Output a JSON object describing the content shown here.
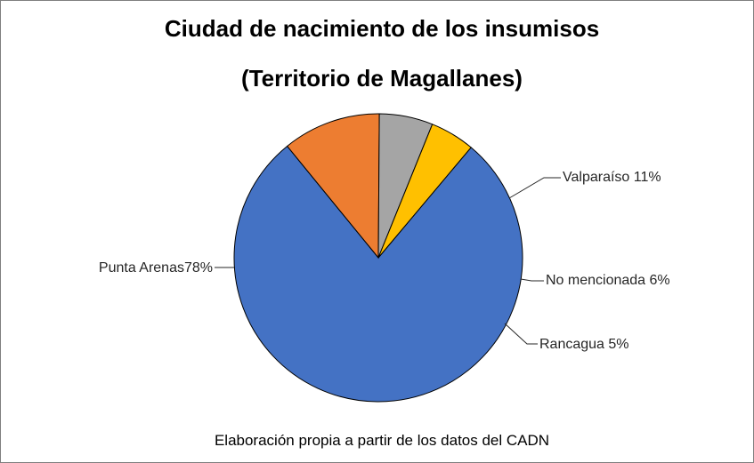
{
  "chart_data": {
    "type": "pie",
    "title": "Ciudad de nacimiento de los insumisos",
    "subtitle": "(Territorio de Magallanes)",
    "source_note": "Elaboración propia a partir de los datos del CADN",
    "slices": [
      {
        "label": "Punta Arenas78%",
        "value": 78,
        "color": "#4472C4"
      },
      {
        "label": "Valparaíso 11%",
        "value": 11,
        "color": "#ED7D31"
      },
      {
        "label": "No mencionada 6%",
        "value": 6,
        "color": "#A5A5A5"
      },
      {
        "label": "Rancagua 5%",
        "value": 5,
        "color": "#FFC000"
      }
    ],
    "legend": "none"
  }
}
